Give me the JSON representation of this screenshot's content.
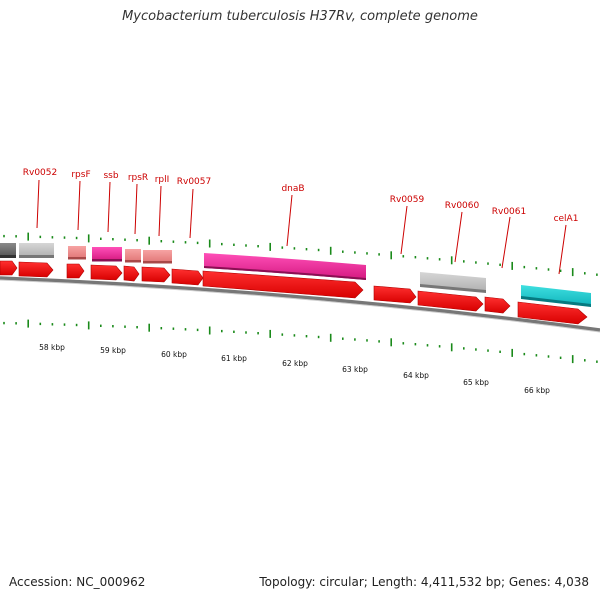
{
  "title": "Mycobacterium tuberculosis H37Rv, complete genome",
  "footer": {
    "accession": "Accession: NC_000962",
    "summary": "Topology: circular; Length: 4,411,532 bp; Genes: 4,038"
  },
  "colors": {
    "cds_arrow": "#ff0000",
    "backbone": "#777777",
    "tick": "#1a8a1a",
    "label": "#cc0000"
  },
  "gene_labels": [
    "Rv0052",
    "rpsF",
    "ssb",
    "rpsR",
    "rplI",
    "Rv0057",
    "dnaB",
    "Rv0059",
    "Rv0060",
    "Rv0061",
    "celA1"
  ],
  "kbp_labels": [
    "58 kbp",
    "59 kbp",
    "60 kbp",
    "61 kbp",
    "62 kbp",
    "63 kbp",
    "64 kbp",
    "65 kbp",
    "66 kbp"
  ],
  "feature_colors": [
    "dark-gray",
    "light-gray",
    "salmon",
    "magenta",
    "salmon",
    "salmon",
    "magenta",
    "light-gray",
    "cyan"
  ]
}
